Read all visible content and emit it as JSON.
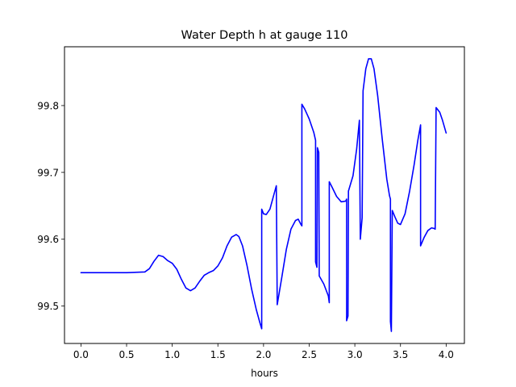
{
  "chart_data": {
    "type": "line",
    "title": "Water Depth h at gauge 110",
    "xlabel": "hours",
    "ylabel": "",
    "xlim": [
      -0.18,
      4.2
    ],
    "ylim": [
      99.444,
      99.888
    ],
    "x_ticks": [
      0.0,
      0.5,
      1.0,
      1.5,
      2.0,
      2.5,
      3.0,
      3.5,
      4.0
    ],
    "x_tick_labels": [
      "0.0",
      "0.5",
      "1.0",
      "1.5",
      "2.0",
      "2.5",
      "3.0",
      "3.5",
      "4.0"
    ],
    "y_ticks": [
      99.5,
      99.6,
      99.7,
      99.8
    ],
    "y_tick_labels": [
      "99.5",
      "99.6",
      "99.7",
      "99.8"
    ],
    "grid": false,
    "legend": "none",
    "series": [
      {
        "color": "#0000ff",
        "x": [
          0.0,
          0.5,
          0.7,
          0.75,
          0.8,
          0.85,
          0.9,
          0.95,
          1.0,
          1.05,
          1.1,
          1.15,
          1.2,
          1.25,
          1.3,
          1.35,
          1.4,
          1.45,
          1.5,
          1.55,
          1.6,
          1.65,
          1.7,
          1.73,
          1.77,
          1.82,
          1.87,
          1.92,
          1.96,
          1.98,
          1.98,
          2.0,
          2.03,
          2.07,
          2.11,
          2.14,
          2.15,
          2.2,
          2.25,
          2.3,
          2.35,
          2.38,
          2.41,
          2.42,
          2.42,
          2.45,
          2.5,
          2.55,
          2.57,
          2.57,
          2.585,
          2.59,
          2.605,
          2.61,
          2.66,
          2.71,
          2.72,
          2.72,
          2.75,
          2.8,
          2.85,
          2.9,
          2.91,
          2.91,
          2.925,
          2.93,
          2.98,
          3.02,
          3.05,
          3.06,
          3.08,
          3.09,
          3.12,
          3.15,
          3.18,
          3.21,
          3.25,
          3.3,
          3.35,
          3.38,
          3.39,
          3.39,
          3.4,
          3.41,
          3.44,
          3.47,
          3.5,
          3.55,
          3.6,
          3.65,
          3.69,
          3.72,
          3.72,
          3.76,
          3.8,
          3.84,
          3.87,
          3.88,
          3.89,
          3.93,
          3.96,
          4.0
        ],
        "y": [
          99.55,
          99.55,
          99.551,
          99.556,
          99.567,
          99.576,
          99.574,
          99.568,
          99.564,
          99.555,
          99.54,
          99.527,
          99.523,
          99.527,
          99.537,
          99.546,
          99.55,
          99.553,
          99.56,
          99.572,
          99.59,
          99.603,
          99.607,
          99.604,
          99.59,
          99.56,
          99.525,
          99.495,
          99.475,
          99.466,
          99.645,
          99.638,
          99.637,
          99.645,
          99.665,
          99.68,
          99.502,
          99.543,
          99.585,
          99.615,
          99.628,
          99.63,
          99.622,
          99.62,
          99.802,
          99.795,
          99.78,
          99.76,
          99.748,
          99.566,
          99.558,
          99.737,
          99.73,
          99.545,
          99.533,
          99.515,
          99.505,
          99.686,
          99.678,
          99.664,
          99.656,
          99.657,
          99.66,
          99.478,
          99.485,
          99.672,
          99.695,
          99.735,
          99.778,
          99.6,
          99.632,
          99.822,
          99.855,
          99.87,
          99.87,
          99.855,
          99.815,
          99.75,
          99.69,
          99.665,
          99.66,
          99.477,
          99.462,
          99.643,
          99.633,
          99.624,
          99.622,
          99.638,
          99.672,
          99.712,
          99.748,
          99.771,
          99.59,
          99.603,
          99.613,
          99.617,
          99.616,
          99.615,
          99.797,
          99.79,
          99.778,
          99.759
        ]
      }
    ]
  }
}
